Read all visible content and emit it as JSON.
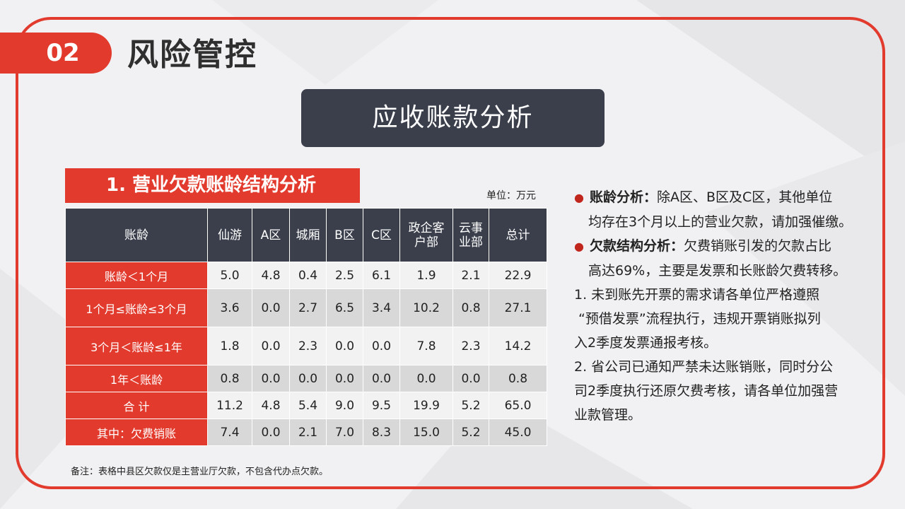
{
  "header": {
    "section_number": "02",
    "title": "风险管控"
  },
  "banner": {
    "text": "应收账款分析"
  },
  "section": {
    "title": "1. 营业欠款账龄结构分析",
    "unit": "单位：万元"
  },
  "table": {
    "columns": [
      "账龄",
      "仙游",
      "A区",
      "城厢",
      "B区",
      "C区",
      "政企客户部",
      "云事业部",
      "总计"
    ],
    "header_lines": [
      [
        "账龄"
      ],
      [
        "仙游"
      ],
      [
        "A区"
      ],
      [
        "城厢"
      ],
      [
        "B区"
      ],
      [
        "C区"
      ],
      [
        "政企客",
        "户部"
      ],
      [
        "云事",
        "业部"
      ],
      [
        "总计"
      ]
    ],
    "rows": [
      {
        "label": "账龄＜1个月",
        "values": [
          "5.0",
          "4.8",
          "0.4",
          "2.5",
          "6.1",
          "1.9",
          "2.1",
          "22.9"
        ]
      },
      {
        "label": "1个月≤账龄≤3个月",
        "values": [
          "3.6",
          "0.0",
          "2.7",
          "6.5",
          "3.4",
          "10.2",
          "0.8",
          "27.1"
        ]
      },
      {
        "label": "3个月＜账龄≤1年",
        "values": [
          "1.8",
          "0.0",
          "2.3",
          "0.0",
          "0.0",
          "7.8",
          "2.3",
          "14.2"
        ]
      },
      {
        "label": "1年＜账龄",
        "values": [
          "0.8",
          "0.0",
          "0.0",
          "0.0",
          "0.0",
          "0.0",
          "0.0",
          "0.8"
        ]
      },
      {
        "label": "合 计",
        "values": [
          "11.2",
          "4.8",
          "5.4",
          "9.0",
          "9.5",
          "19.9",
          "5.2",
          "65.0"
        ]
      },
      {
        "label": "其中：欠费销账",
        "values": [
          "7.4",
          "0.0",
          "2.1",
          "7.0",
          "8.3",
          "15.0",
          "5.2",
          "45.0"
        ]
      }
    ]
  },
  "note": "备注：表格中县区欠款仅是主营业厅欠款，不包含代办点欠款。",
  "analysis": {
    "p1": {
      "keyword": "账龄分析：",
      "line1": "除A区、B区及C区，其他单位",
      "line2": "均存在3个月以上的营业欠款，请加强催缴。"
    },
    "p2": {
      "keyword": "欠款结构分析：",
      "line1": "欠费销账引发的欠款占比",
      "line2": "高达69%，主要是发票和长账龄欠费转移。"
    },
    "p3": {
      "line1": "1. 未到账先开票的需求请各单位严格遵照",
      "line2": "“预借发票”流程执行，违规开票销账拟列",
      "line3": "入2季度发票通报考核。"
    },
    "p4": {
      "line1": "2. 省公司已通知严禁未达账销账，同时分公",
      "line2": "司2季度执行还原欠费考核，请各单位加强营",
      "line3": "业款管理。"
    }
  },
  "colors": {
    "accent": "#e23b2e",
    "dark": "#3a3f4b"
  }
}
